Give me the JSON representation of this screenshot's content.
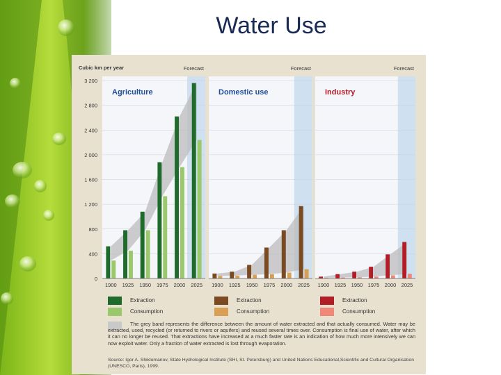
{
  "slide": {
    "title": "Water Use"
  },
  "colors": {
    "background_figure": "#e9e1d0",
    "agri_extraction": "#1f6b2c",
    "agri_consumption": "#9ac86a",
    "dom_extraction": "#7a4a22",
    "dom_consumption": "#d9a055",
    "ind_extraction": "#b21d27",
    "ind_consumption": "#ef8878",
    "grey_band": "#b9b9b9",
    "forecast_shade": "#cfe0f0"
  },
  "chart_data": {
    "type": "bar",
    "ylabel": "Cubic km per year",
    "ylim": [
      0,
      3200
    ],
    "yticks": [
      0,
      400,
      800,
      1200,
      1600,
      2000,
      2400,
      2800,
      3200
    ],
    "ytick_labels": [
      "0",
      "400",
      "800",
      "1 200",
      "1 600",
      "2 000",
      "2 400",
      "2 800",
      "3 200"
    ],
    "categories": [
      "1900",
      "1925",
      "1950",
      "1975",
      "2000",
      "2025"
    ],
    "forecast_label": "Forecast",
    "forecast_from": "2025",
    "panels": [
      {
        "name": "Agriculture",
        "series": [
          {
            "name": "Extraction",
            "values": [
              520,
              780,
              1080,
              1880,
              2620,
              3160
            ]
          },
          {
            "name": "Consumption",
            "values": [
              290,
              450,
              780,
              1330,
              1800,
              2240
            ]
          }
        ]
      },
      {
        "name": "Domestic use",
        "series": [
          {
            "name": "Extraction",
            "values": [
              80,
              110,
              220,
              500,
              780,
              1170
            ]
          },
          {
            "name": "Consumption",
            "values": [
              40,
              45,
              60,
              70,
              95,
              150
            ]
          }
        ]
      },
      {
        "name": "Industry",
        "series": [
          {
            "name": "Extraction",
            "values": [
              30,
              70,
              110,
              190,
              390,
              590
            ]
          },
          {
            "name": "Consumption",
            "values": [
              10,
              15,
              20,
              30,
              50,
              75
            ]
          }
        ]
      }
    ]
  },
  "legend": {
    "extraction_label": "Extraction",
    "consumption_label": "Consumption",
    "band_text": "The grey band represents the difference between the amount of water extracted and that actually consumed. Water may be extracted, used, recycled (or returned to rivers or aquifers) and reused several times over. Consumption is final use of water, after which it can no longer be reused. That extractions have increased at a much faster rate is an indication of how much more intensively we can now exploit water. Only a fraction of water extracted is lost through evaporation.",
    "source_text": "Source: Igor A. Shiklomanov, State Hydrological Institute (SHI, St. Petersburg) and United Nations Educational,Scientific and Cultural Organisation (UNESCO, Paris), 1999."
  }
}
